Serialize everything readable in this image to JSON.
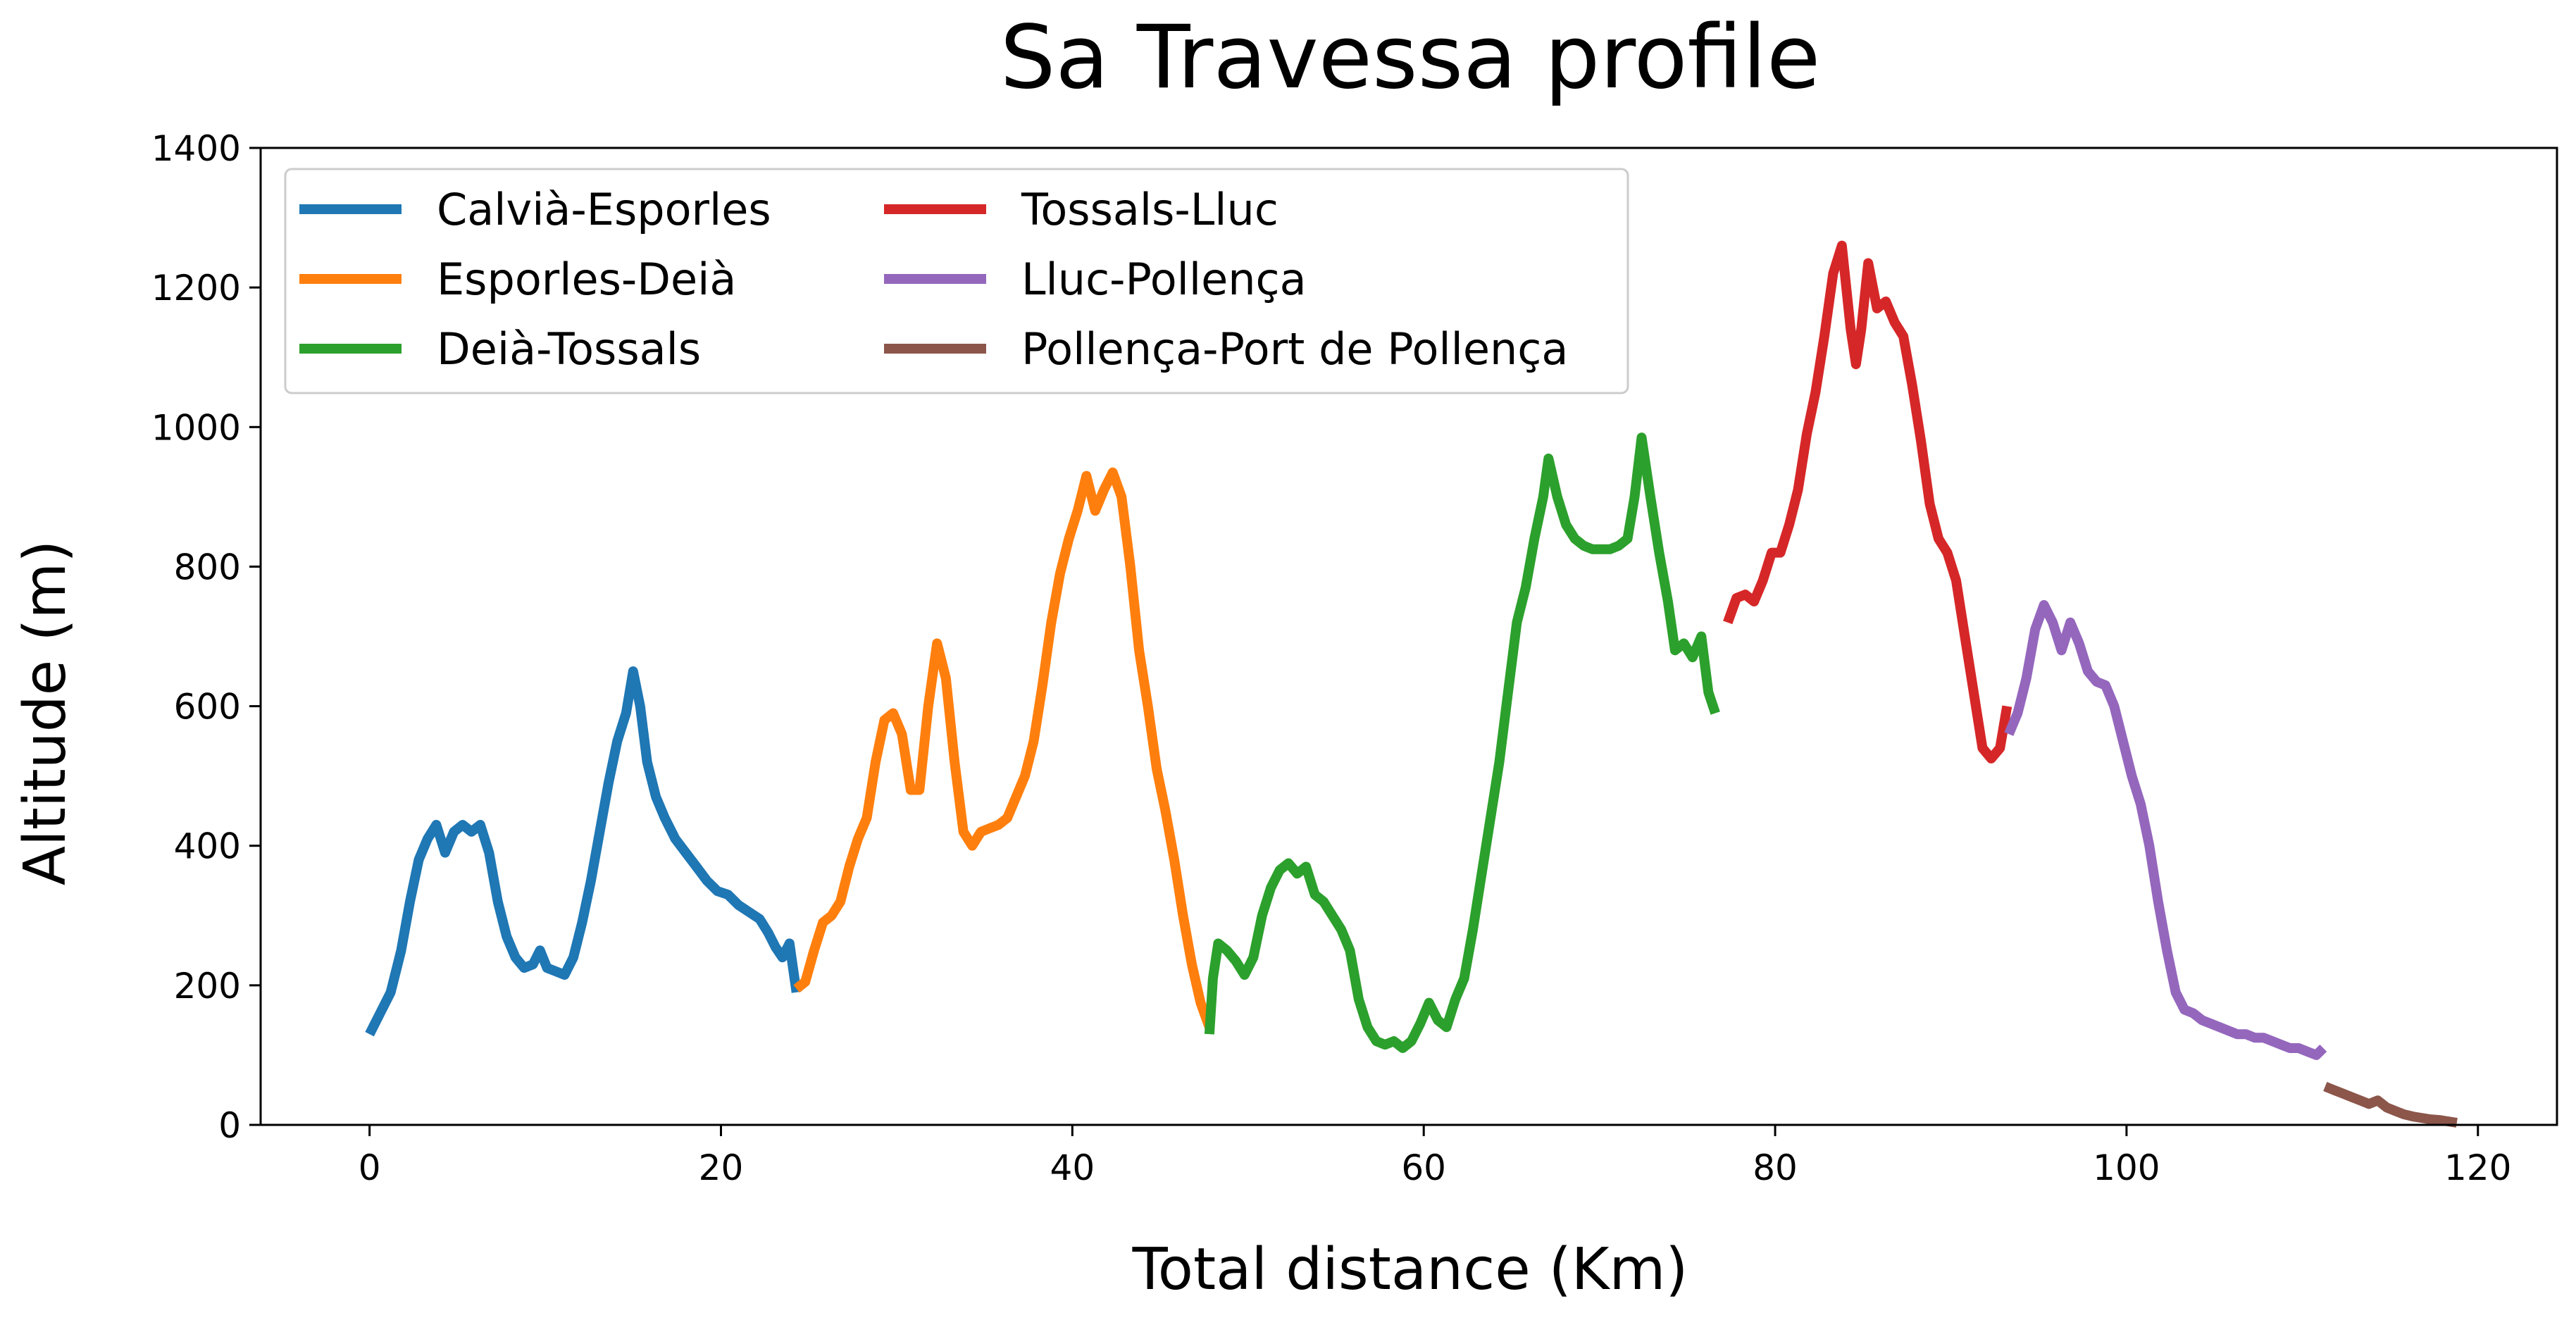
{
  "chart_data": {
    "type": "line",
    "title": "Sa Travessa profile",
    "xlabel": "Total distance (Km)",
    "ylabel": "Altitude (m)",
    "xlim": [
      -6.2,
      124.5
    ],
    "ylim": [
      0,
      1400
    ],
    "xticks": [
      0,
      20,
      40,
      60,
      80,
      100,
      120
    ],
    "yticks": [
      0,
      200,
      400,
      600,
      800,
      1000,
      1200,
      1400
    ],
    "grid": false,
    "legend_position": "upper-left",
    "legend_columns": 2,
    "series": [
      {
        "name": "Calvià-Esporles",
        "color": "#1f77b4",
        "points": [
          [
            0,
            130
          ],
          [
            0.6,
            160
          ],
          [
            1.2,
            190
          ],
          [
            1.8,
            250
          ],
          [
            2.3,
            320
          ],
          [
            2.8,
            380
          ],
          [
            3.3,
            410
          ],
          [
            3.8,
            430
          ],
          [
            4.3,
            390
          ],
          [
            4.8,
            420
          ],
          [
            5.3,
            430
          ],
          [
            5.8,
            420
          ],
          [
            6.3,
            430
          ],
          [
            6.8,
            390
          ],
          [
            7.3,
            320
          ],
          [
            7.8,
            270
          ],
          [
            8.3,
            240
          ],
          [
            8.8,
            225
          ],
          [
            9.3,
            230
          ],
          [
            9.7,
            250
          ],
          [
            10.1,
            225
          ],
          [
            10.6,
            220
          ],
          [
            11.1,
            215
          ],
          [
            11.6,
            240
          ],
          [
            12.1,
            290
          ],
          [
            12.6,
            350
          ],
          [
            13.1,
            420
          ],
          [
            13.6,
            490
          ],
          [
            14.1,
            550
          ],
          [
            14.6,
            590
          ],
          [
            15.0,
            650
          ],
          [
            15.4,
            600
          ],
          [
            15.8,
            520
          ],
          [
            16.3,
            470
          ],
          [
            16.8,
            440
          ],
          [
            17.4,
            410
          ],
          [
            18.0,
            390
          ],
          [
            18.6,
            370
          ],
          [
            19.2,
            350
          ],
          [
            19.8,
            335
          ],
          [
            20.4,
            330
          ],
          [
            21.0,
            315
          ],
          [
            21.6,
            305
          ],
          [
            22.2,
            295
          ],
          [
            22.7,
            275
          ],
          [
            23.1,
            255
          ],
          [
            23.5,
            240
          ],
          [
            23.9,
            260
          ],
          [
            24.3,
            190
          ]
        ]
      },
      {
        "name": "Esporles-Deià",
        "color": "#ff7f0e",
        "points": [
          [
            24.3,
            195
          ],
          [
            24.8,
            205
          ],
          [
            25.3,
            250
          ],
          [
            25.8,
            290
          ],
          [
            26.3,
            300
          ],
          [
            26.8,
            320
          ],
          [
            27.3,
            370
          ],
          [
            27.8,
            410
          ],
          [
            28.3,
            440
          ],
          [
            28.8,
            520
          ],
          [
            29.3,
            580
          ],
          [
            29.8,
            590
          ],
          [
            30.3,
            560
          ],
          [
            30.8,
            480
          ],
          [
            31.3,
            480
          ],
          [
            31.8,
            600
          ],
          [
            32.3,
            690
          ],
          [
            32.8,
            640
          ],
          [
            33.3,
            520
          ],
          [
            33.8,
            420
          ],
          [
            34.3,
            400
          ],
          [
            34.8,
            420
          ],
          [
            35.3,
            425
          ],
          [
            35.8,
            430
          ],
          [
            36.3,
            440
          ],
          [
            36.8,
            470
          ],
          [
            37.3,
            500
          ],
          [
            37.8,
            550
          ],
          [
            38.3,
            630
          ],
          [
            38.8,
            720
          ],
          [
            39.3,
            790
          ],
          [
            39.8,
            840
          ],
          [
            40.3,
            880
          ],
          [
            40.8,
            930
          ],
          [
            41.3,
            880
          ],
          [
            41.8,
            910
          ],
          [
            42.3,
            935
          ],
          [
            42.8,
            900
          ],
          [
            43.3,
            800
          ],
          [
            43.8,
            680
          ],
          [
            44.3,
            600
          ],
          [
            44.8,
            510
          ],
          [
            45.3,
            450
          ],
          [
            45.8,
            380
          ],
          [
            46.3,
            300
          ],
          [
            46.8,
            230
          ],
          [
            47.3,
            175
          ],
          [
            47.8,
            140
          ]
        ]
      },
      {
        "name": "Deià-Tossals",
        "color": "#2ca02c",
        "points": [
          [
            47.8,
            130
          ],
          [
            48.0,
            210
          ],
          [
            48.3,
            260
          ],
          [
            48.8,
            250
          ],
          [
            49.3,
            235
          ],
          [
            49.8,
            215
          ],
          [
            50.3,
            240
          ],
          [
            50.8,
            300
          ],
          [
            51.3,
            340
          ],
          [
            51.8,
            365
          ],
          [
            52.3,
            375
          ],
          [
            52.8,
            360
          ],
          [
            53.3,
            370
          ],
          [
            53.8,
            330
          ],
          [
            54.3,
            320
          ],
          [
            54.8,
            300
          ],
          [
            55.3,
            280
          ],
          [
            55.8,
            250
          ],
          [
            56.3,
            180
          ],
          [
            56.8,
            140
          ],
          [
            57.3,
            120
          ],
          [
            57.8,
            115
          ],
          [
            58.3,
            120
          ],
          [
            58.8,
            110
          ],
          [
            59.3,
            120
          ],
          [
            59.8,
            145
          ],
          [
            60.3,
            175
          ],
          [
            60.8,
            150
          ],
          [
            61.3,
            140
          ],
          [
            61.8,
            180
          ],
          [
            62.3,
            210
          ],
          [
            62.8,
            280
          ],
          [
            63.3,
            360
          ],
          [
            63.8,
            440
          ],
          [
            64.3,
            520
          ],
          [
            64.8,
            620
          ],
          [
            65.3,
            720
          ],
          [
            65.8,
            770
          ],
          [
            66.3,
            840
          ],
          [
            66.8,
            900
          ],
          [
            67.1,
            955
          ],
          [
            67.6,
            900
          ],
          [
            68.1,
            860
          ],
          [
            68.6,
            840
          ],
          [
            69.1,
            830
          ],
          [
            69.6,
            825
          ],
          [
            70.1,
            825
          ],
          [
            70.6,
            825
          ],
          [
            71.1,
            830
          ],
          [
            71.6,
            840
          ],
          [
            72.0,
            900
          ],
          [
            72.4,
            985
          ],
          [
            72.9,
            900
          ],
          [
            73.4,
            820
          ],
          [
            73.9,
            750
          ],
          [
            74.3,
            680
          ],
          [
            74.8,
            690
          ],
          [
            75.3,
            670
          ],
          [
            75.8,
            700
          ],
          [
            76.2,
            620
          ],
          [
            76.6,
            590
          ]
        ]
      },
      {
        "name": "Tossals-Lluc",
        "color": "#d62728",
        "points": [
          [
            77.3,
            720
          ],
          [
            77.8,
            755
          ],
          [
            78.3,
            760
          ],
          [
            78.8,
            750
          ],
          [
            79.3,
            780
          ],
          [
            79.8,
            820
          ],
          [
            80.3,
            820
          ],
          [
            80.8,
            860
          ],
          [
            81.3,
            910
          ],
          [
            81.8,
            990
          ],
          [
            82.3,
            1050
          ],
          [
            82.8,
            1130
          ],
          [
            83.3,
            1220
          ],
          [
            83.8,
            1260
          ],
          [
            84.3,
            1140
          ],
          [
            84.6,
            1090
          ],
          [
            84.9,
            1140
          ],
          [
            85.3,
            1235
          ],
          [
            85.8,
            1170
          ],
          [
            86.3,
            1180
          ],
          [
            86.8,
            1150
          ],
          [
            87.3,
            1130
          ],
          [
            87.8,
            1060
          ],
          [
            88.3,
            980
          ],
          [
            88.8,
            890
          ],
          [
            89.3,
            840
          ],
          [
            89.8,
            820
          ],
          [
            90.3,
            780
          ],
          [
            90.8,
            700
          ],
          [
            91.3,
            620
          ],
          [
            91.8,
            540
          ],
          [
            92.3,
            525
          ],
          [
            92.8,
            540
          ],
          [
            93.2,
            600
          ]
        ]
      },
      {
        "name": "Lluc-Pollença",
        "color": "#9467bd",
        "points": [
          [
            93.3,
            560
          ],
          [
            93.8,
            590
          ],
          [
            94.3,
            640
          ],
          [
            94.8,
            710
          ],
          [
            95.3,
            745
          ],
          [
            95.8,
            720
          ],
          [
            96.3,
            680
          ],
          [
            96.8,
            720
          ],
          [
            97.3,
            690
          ],
          [
            97.8,
            650
          ],
          [
            98.3,
            635
          ],
          [
            98.8,
            630
          ],
          [
            99.3,
            600
          ],
          [
            99.8,
            550
          ],
          [
            100.3,
            500
          ],
          [
            100.8,
            460
          ],
          [
            101.3,
            400
          ],
          [
            101.8,
            320
          ],
          [
            102.3,
            250
          ],
          [
            102.8,
            190
          ],
          [
            103.3,
            165
          ],
          [
            103.8,
            160
          ],
          [
            104.3,
            150
          ],
          [
            104.8,
            145
          ],
          [
            105.3,
            140
          ],
          [
            105.8,
            135
          ],
          [
            106.3,
            130
          ],
          [
            106.8,
            130
          ],
          [
            107.3,
            125
          ],
          [
            107.8,
            125
          ],
          [
            108.3,
            120
          ],
          [
            108.8,
            115
          ],
          [
            109.3,
            110
          ],
          [
            109.8,
            110
          ],
          [
            110.3,
            105
          ],
          [
            110.8,
            100
          ],
          [
            111.2,
            110
          ]
        ]
      },
      {
        "name": "Pollença-Port de Pollença",
        "color": "#8c564b",
        "points": [
          [
            111.3,
            55
          ],
          [
            111.8,
            50
          ],
          [
            112.3,
            45
          ],
          [
            112.8,
            40
          ],
          [
            113.3,
            35
          ],
          [
            113.8,
            30
          ],
          [
            114.3,
            35
          ],
          [
            114.8,
            25
          ],
          [
            115.3,
            20
          ],
          [
            115.8,
            15
          ],
          [
            116.3,
            12
          ],
          [
            116.8,
            10
          ],
          [
            117.3,
            8
          ],
          [
            117.8,
            7
          ],
          [
            118.3,
            5
          ],
          [
            118.8,
            3
          ]
        ]
      }
    ]
  }
}
